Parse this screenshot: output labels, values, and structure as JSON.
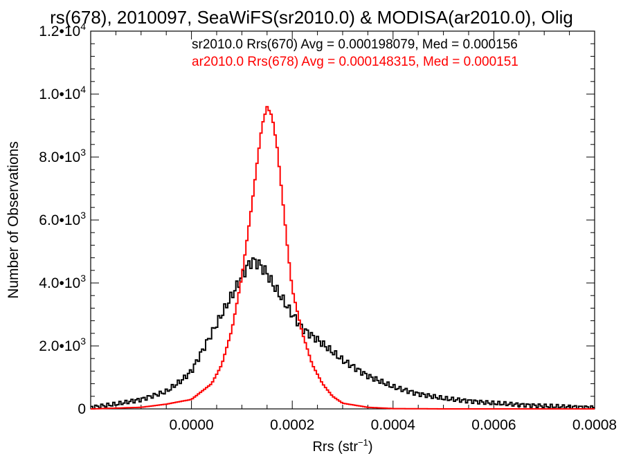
{
  "chart_data": {
    "type": "line",
    "title": "rs(678), 2010097, SeaWiFS(sr2010.0) & MODISA(ar2010.0), Olig",
    "xlabel": "Rrs (str",
    "xlabel_superscript": "−1",
    "xlabel_suffix": ")",
    "ylabel": "Number of Observations",
    "xlim": [
      -0.0002,
      0.0008
    ],
    "ylim": [
      0,
      12000
    ],
    "x_ticks": [
      {
        "value": 0.0,
        "label": "0.0000"
      },
      {
        "value": 0.0002,
        "label": "0.0002"
      },
      {
        "value": 0.0004,
        "label": "0.0004"
      },
      {
        "value": 0.0006,
        "label": "0.0006"
      },
      {
        "value": 0.0008,
        "label": "0.0008"
      }
    ],
    "y_ticks": [
      {
        "value": 0,
        "mantissa": "0",
        "exponent": ""
      },
      {
        "value": 2000,
        "mantissa": "2.0•10",
        "exponent": "3"
      },
      {
        "value": 4000,
        "mantissa": "4.0•10",
        "exponent": "3"
      },
      {
        "value": 6000,
        "mantissa": "6.0•10",
        "exponent": "3"
      },
      {
        "value": 8000,
        "mantissa": "8.0•10",
        "exponent": "3"
      },
      {
        "value": 10000,
        "mantissa": "1.0•10",
        "exponent": "4"
      },
      {
        "value": 12000,
        "mantissa": "1.2•10",
        "exponent": "4"
      }
    ],
    "grid": false,
    "legend_position": "top-right",
    "series": [
      {
        "name": "sr2010.0 Rrs(670) Avg = 0.000198079, Med = 0.000156",
        "color": "#000000",
        "x": [
          -0.0002,
          -0.00015,
          -0.0001,
          -5e-05,
          -2e-05,
          0.0,
          2e-05,
          4e-05,
          6e-05,
          8e-05,
          0.0001,
          0.00011,
          0.00012,
          0.00013,
          0.00014,
          0.00015,
          0.00016,
          0.00018,
          0.0002,
          0.00022,
          0.00025,
          0.0003,
          0.00035,
          0.0004,
          0.00045,
          0.0005,
          0.0006,
          0.0007,
          0.0008
        ],
        "values": [
          50,
          150,
          300,
          550,
          900,
          1200,
          1800,
          2400,
          3000,
          3600,
          4200,
          4500,
          4700,
          4650,
          4500,
          4300,
          4000,
          3500,
          3000,
          2550,
          2200,
          1550,
          1050,
          700,
          480,
          330,
          180,
          90,
          40
        ]
      },
      {
        "name": "ar2010.0 Rrs(678) Avg = 0.000148315, Med = 0.000151",
        "color": "#ff0000",
        "x": [
          -0.0002,
          -0.0001,
          -5e-05,
          0.0,
          4e-05,
          6e-05,
          8e-05,
          0.0001,
          0.00012,
          0.00013,
          0.00014,
          0.00015,
          0.00016,
          0.00017,
          0.00018,
          0.00019,
          0.0002,
          0.00022,
          0.00024,
          0.00026,
          0.00028,
          0.0003,
          0.00035,
          0.0004,
          0.0005,
          0.0008
        ],
        "values": [
          0,
          50,
          150,
          300,
          800,
          1400,
          2500,
          4200,
          6500,
          7800,
          9000,
          9600,
          9300,
          8300,
          6800,
          5200,
          3800,
          2400,
          1400,
          800,
          400,
          180,
          50,
          10,
          0,
          0
        ]
      }
    ]
  }
}
